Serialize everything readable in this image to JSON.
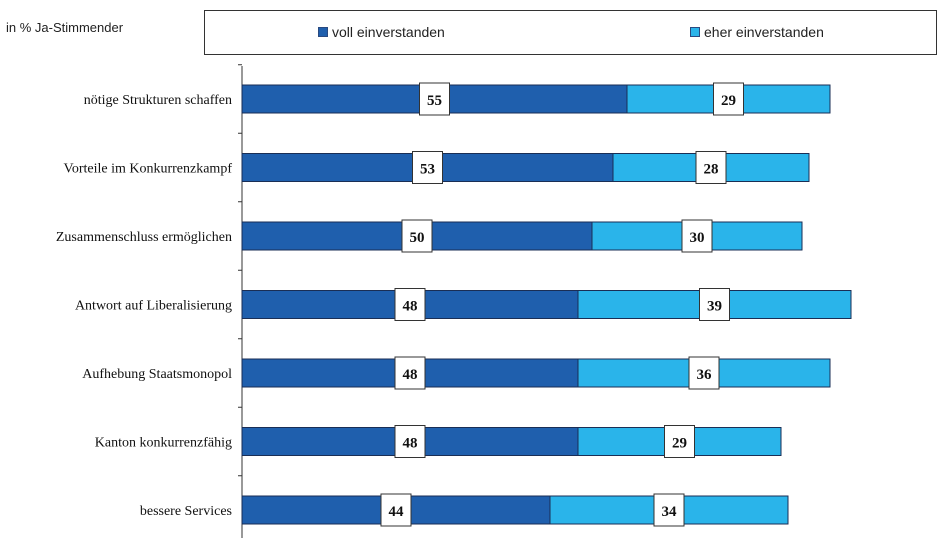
{
  "chart_data": {
    "type": "bar",
    "orientation": "horizontal",
    "stacked": true,
    "unit_label": "in % Ja-Stimmender",
    "categories": [
      "nötige Strukturen schaffen",
      "Vorteile im Konkurrenzkampf",
      "Zusammenschluss ermöglichen",
      "Antwort auf Liberalisierung",
      "Aufhebung Staatsmonopol",
      "Kanton konkurrenzfähig",
      "bessere Services"
    ],
    "series": [
      {
        "name": "voll einverstanden",
        "color": "#1f5fad",
        "values": [
          55,
          53,
          50,
          48,
          48,
          48,
          44
        ]
      },
      {
        "name": "eher einverstanden",
        "color": "#2ab4ea",
        "values": [
          29,
          28,
          30,
          39,
          36,
          29,
          34
        ]
      }
    ],
    "xlim": [
      0,
      88
    ],
    "legend_position": "top",
    "grid": false
  }
}
